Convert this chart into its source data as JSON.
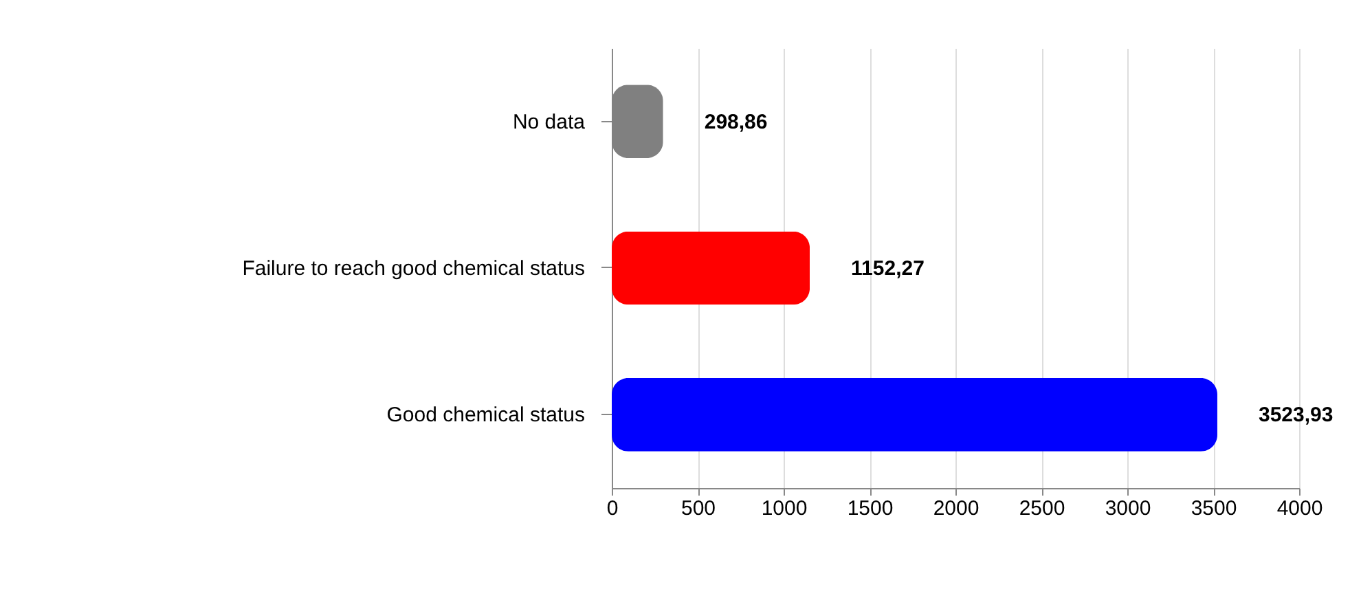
{
  "chart_data": {
    "type": "bar",
    "orientation": "horizontal",
    "categories": [
      "No data",
      "Failure to reach good chemical status",
      "Good chemical status"
    ],
    "values": [
      298.86,
      1152.27,
      3523.93
    ],
    "colors": [
      "#808080",
      "#ff0000",
      "#0000ff"
    ],
    "value_labels": [
      "298,86",
      "1152,27",
      "3523,93"
    ],
    "xlim": [
      0,
      4000
    ],
    "xticks": [
      0,
      500,
      1000,
      1500,
      2000,
      2500,
      3000,
      3500,
      4000
    ],
    "grid": "x"
  }
}
